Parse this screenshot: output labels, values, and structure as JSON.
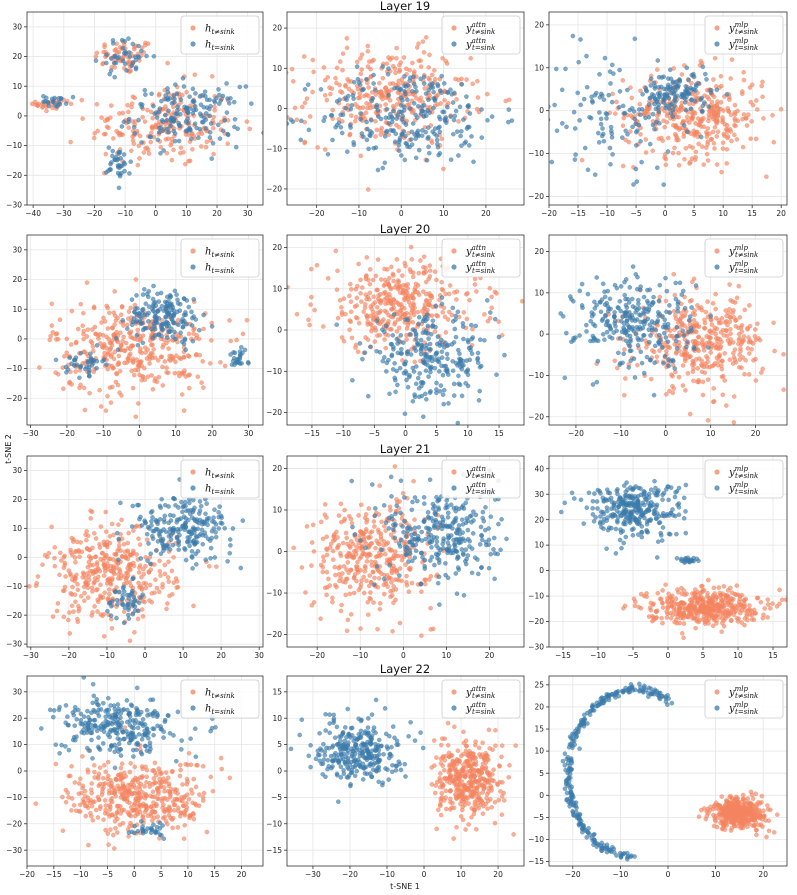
{
  "figure": {
    "xlabel": "t-SNE 1",
    "ylabel": "t-SNE 2",
    "colors": {
      "not_sink": "#f4845f",
      "sink": "#3b7bab"
    }
  },
  "rows": [
    {
      "title": "Layer 19"
    },
    {
      "title": "Layer 20"
    },
    {
      "title": "Layer 21"
    },
    {
      "title": "Layer 22"
    }
  ],
  "legend_kinds": {
    "h": {
      "base": "h",
      "sup": "",
      "sub_not": "t≠sink",
      "sub_sink": "t=sink"
    },
    "attn": {
      "base": "y",
      "sup": "attn",
      "sub_not": "t≠sink",
      "sub_sink": "t=sink"
    },
    "mlp": {
      "base": "y",
      "sup": "mlp",
      "sub_not": "t≠sink",
      "sub_sink": "t=sink"
    }
  },
  "chart_data": [
    {
      "type": "scatter",
      "layer": "Layer 19",
      "kind": "h",
      "legend_pos": "top-right",
      "xlim": [
        -42,
        35
      ],
      "ylim": [
        -30,
        35
      ],
      "xticks": [
        -40,
        -30,
        -20,
        -10,
        0,
        10,
        20,
        30
      ],
      "yticks": [
        -30,
        -20,
        -10,
        0,
        10,
        20,
        30
      ],
      "clusters": [
        {
          "series": "not_sink",
          "n": 60,
          "cx": -10,
          "cy": 20,
          "rx": 10,
          "ry": 6,
          "shape": "gauss"
        },
        {
          "series": "not_sink",
          "n": 210,
          "cx": 2,
          "cy": -3,
          "rx": 24,
          "ry": 14,
          "shape": "gauss"
        },
        {
          "series": "not_sink",
          "n": 25,
          "cx": -34,
          "cy": 4,
          "rx": 5,
          "ry": 3,
          "shape": "gauss"
        },
        {
          "series": "sink",
          "n": 40,
          "cx": -10,
          "cy": 20,
          "rx": 9,
          "ry": 6,
          "shape": "gauss"
        },
        {
          "series": "sink",
          "n": 160,
          "cx": 10,
          "cy": 0,
          "rx": 18,
          "ry": 10,
          "shape": "gauss"
        },
        {
          "series": "sink",
          "n": 35,
          "cx": -12,
          "cy": -16,
          "rx": 4,
          "ry": 6,
          "shape": "gauss"
        },
        {
          "series": "sink",
          "n": 20,
          "cx": -33,
          "cy": 5,
          "rx": 4,
          "ry": 2,
          "shape": "gauss"
        }
      ]
    },
    {
      "type": "scatter",
      "layer": "Layer 19",
      "kind": "attn",
      "legend_pos": "top-right",
      "xlim": [
        -27,
        29
      ],
      "ylim": [
        -24,
        24
      ],
      "xticks": [
        -20,
        -10,
        0,
        10,
        20
      ],
      "yticks": [
        -20,
        -10,
        0,
        10,
        20
      ],
      "clusters": [
        {
          "series": "not_sink",
          "n": 330,
          "cx": -3,
          "cy": 3,
          "rx": 19,
          "ry": 12,
          "shape": "gauss"
        },
        {
          "series": "sink",
          "n": 260,
          "cx": 2,
          "cy": -2,
          "rx": 21,
          "ry": 12,
          "shape": "gauss"
        }
      ]
    },
    {
      "type": "scatter",
      "layer": "Layer 19",
      "kind": "mlp",
      "legend_pos": "top-right",
      "xlim": [
        -20,
        21
      ],
      "ylim": [
        -22,
        23
      ],
      "xticks": [
        -20,
        -15,
        -10,
        -5,
        0,
        5,
        10,
        15,
        20
      ],
      "yticks": [
        -20,
        -10,
        0,
        10,
        20
      ],
      "clusters": [
        {
          "series": "not_sink",
          "n": 360,
          "cx": 5,
          "cy": -1,
          "rx": 12,
          "ry": 10,
          "shape": "gauss"
        },
        {
          "series": "sink",
          "n": 120,
          "cx": 2,
          "cy": 4,
          "rx": 6,
          "ry": 5,
          "shape": "gauss"
        },
        {
          "series": "sink",
          "n": 120,
          "cx": -9,
          "cy": 0,
          "rx": 12,
          "ry": 14,
          "shape": "gauss"
        }
      ]
    },
    {
      "type": "scatter",
      "layer": "Layer 20",
      "kind": "h",
      "legend_pos": "top-right",
      "xlim": [
        -31,
        34
      ],
      "ylim": [
        -29,
        35
      ],
      "xticks": [
        -30,
        -20,
        -10,
        0,
        10,
        20,
        30
      ],
      "yticks": [
        -20,
        -10,
        0,
        10,
        20,
        30
      ],
      "clusters": [
        {
          "series": "not_sink",
          "n": 380,
          "cx": -2,
          "cy": -3,
          "rx": 22,
          "ry": 16,
          "shape": "gauss"
        },
        {
          "series": "sink",
          "n": 170,
          "cx": 7,
          "cy": 8,
          "rx": 10,
          "ry": 9,
          "shape": "gauss"
        },
        {
          "series": "sink",
          "n": 40,
          "cx": -15,
          "cy": -8,
          "rx": 5,
          "ry": 4,
          "shape": "gauss"
        },
        {
          "series": "sink",
          "n": 25,
          "cx": 27,
          "cy": -7,
          "rx": 3,
          "ry": 3,
          "shape": "gauss"
        }
      ]
    },
    {
      "type": "scatter",
      "layer": "Layer 20",
      "kind": "attn",
      "legend_pos": "top-right",
      "xlim": [
        -19,
        19
      ],
      "ylim": [
        -23,
        23
      ],
      "xticks": [
        -15,
        -10,
        -5,
        0,
        5,
        10,
        15
      ],
      "yticks": [
        -20,
        -10,
        0,
        10,
        20
      ],
      "clusters": [
        {
          "series": "not_sink",
          "n": 380,
          "cx": -1,
          "cy": 6,
          "rx": 13,
          "ry": 11,
          "shape": "gauss"
        },
        {
          "series": "sink",
          "n": 260,
          "cx": 4,
          "cy": -7,
          "rx": 10,
          "ry": 10,
          "shape": "gauss"
        }
      ]
    },
    {
      "type": "scatter",
      "layer": "Layer 20",
      "kind": "mlp",
      "legend_pos": "top-right",
      "xlim": [
        -26,
        27
      ],
      "ylim": [
        -22,
        24
      ],
      "xticks": [
        -20,
        -10,
        0,
        10,
        20
      ],
      "yticks": [
        -20,
        -10,
        0,
        10,
        20
      ],
      "clusters": [
        {
          "series": "not_sink",
          "n": 380,
          "cx": 8,
          "cy": -2,
          "rx": 14,
          "ry": 11,
          "shape": "gauss"
        },
        {
          "series": "sink",
          "n": 280,
          "cx": -7,
          "cy": 3,
          "rx": 13,
          "ry": 11,
          "shape": "gauss"
        }
      ]
    },
    {
      "type": "scatter",
      "layer": "Layer 21",
      "kind": "h",
      "legend_pos": "top-right",
      "xlim": [
        -31,
        31
      ],
      "ylim": [
        -31,
        35
      ],
      "xticks": [
        -30,
        -20,
        -10,
        0,
        10,
        20,
        30
      ],
      "yticks": [
        -30,
        -20,
        -10,
        0,
        10,
        20,
        30
      ],
      "clusters": [
        {
          "series": "not_sink",
          "n": 380,
          "cx": -9,
          "cy": -6,
          "rx": 17,
          "ry": 16,
          "shape": "gauss"
        },
        {
          "series": "sink",
          "n": 230,
          "cx": 10,
          "cy": 10,
          "rx": 13,
          "ry": 11,
          "shape": "gauss"
        },
        {
          "series": "sink",
          "n": 50,
          "cx": -5,
          "cy": -15,
          "rx": 5,
          "ry": 6,
          "shape": "gauss"
        }
      ]
    },
    {
      "type": "scatter",
      "layer": "Layer 21",
      "kind": "attn",
      "legend_pos": "top-right",
      "xlim": [
        -27,
        28
      ],
      "ylim": [
        -23,
        23
      ],
      "xticks": [
        -20,
        -10,
        0,
        10,
        20
      ],
      "yticks": [
        -20,
        -10,
        0,
        10,
        20
      ],
      "clusters": [
        {
          "series": "not_sink",
          "n": 380,
          "cx": -7,
          "cy": -1,
          "rx": 14,
          "ry": 13,
          "shape": "gauss"
        },
        {
          "series": "sink",
          "n": 300,
          "cx": 9,
          "cy": 4,
          "rx": 13,
          "ry": 12,
          "shape": "gauss"
        }
      ]
    },
    {
      "type": "scatter",
      "layer": "Layer 21",
      "kind": "mlp",
      "legend_pos": "top-right",
      "xlim": [
        -17,
        17
      ],
      "ylim": [
        -30,
        45
      ],
      "xticks": [
        -15,
        -10,
        -5,
        0,
        5,
        10,
        15
      ],
      "yticks": [
        -30,
        -20,
        -10,
        0,
        10,
        20,
        30,
        40
      ],
      "clusters": [
        {
          "series": "not_sink",
          "n": 420,
          "cx": 5,
          "cy": -14,
          "rx": 8,
          "ry": 7,
          "shape": "gauss"
        },
        {
          "series": "sink",
          "n": 300,
          "cx": -5,
          "cy": 24,
          "rx": 7,
          "ry": 11,
          "shape": "gauss"
        },
        {
          "series": "sink",
          "n": 20,
          "cx": 3,
          "cy": 4,
          "rx": 2,
          "ry": 1,
          "shape": "gauss"
        }
      ]
    },
    {
      "type": "scatter",
      "layer": "Layer 22",
      "kind": "h",
      "legend_pos": "top-right",
      "xlim": [
        -20,
        24
      ],
      "ylim": [
        -36,
        36
      ],
      "xticks": [
        -20,
        -15,
        -10,
        -5,
        0,
        5,
        10,
        15,
        20
      ],
      "yticks": [
        -30,
        -20,
        -10,
        0,
        10,
        20,
        30
      ],
      "clusters": [
        {
          "series": "not_sink",
          "n": 430,
          "cx": 1,
          "cy": -10,
          "rx": 13,
          "ry": 14,
          "shape": "gauss"
        },
        {
          "series": "sink",
          "n": 280,
          "cx": -3,
          "cy": 17,
          "rx": 11,
          "ry": 11,
          "shape": "gauss"
        },
        {
          "series": "sink",
          "n": 30,
          "cx": 3,
          "cy": -22,
          "rx": 3,
          "ry": 3,
          "shape": "gauss"
        }
      ]
    },
    {
      "type": "scatter",
      "layer": "Layer 22",
      "kind": "attn",
      "legend_pos": "top-right",
      "xlim": [
        -37,
        27
      ],
      "ylim": [
        -18,
        18
      ],
      "xticks": [
        -30,
        -20,
        -10,
        0,
        10,
        20
      ],
      "yticks": [
        -15,
        -10,
        -5,
        0,
        5,
        10,
        15
      ],
      "clusters": [
        {
          "series": "not_sink",
          "n": 380,
          "cx": 12,
          "cy": -2,
          "rx": 9,
          "ry": 7,
          "shape": "gauss"
        },
        {
          "series": "sink",
          "n": 300,
          "cx": -18,
          "cy": 4,
          "rx": 11,
          "ry": 6,
          "shape": "gauss"
        }
      ]
    },
    {
      "type": "scatter",
      "layer": "Layer 22",
      "kind": "mlp",
      "legend_pos": "top-right",
      "xlim": [
        -25,
        25
      ],
      "ylim": [
        -16,
        27
      ],
      "xticks": [
        -20,
        -10,
        0,
        10,
        20
      ],
      "yticks": [
        -15,
        -10,
        -5,
        0,
        5,
        10,
        15,
        20,
        25
      ],
      "clusters": [
        {
          "series": "not_sink",
          "n": 380,
          "cx": 15,
          "cy": -4,
          "rx": 6,
          "ry": 3.5,
          "shape": "gauss"
        },
        {
          "series": "sink",
          "n": 280,
          "cx": -7,
          "cy": 5,
          "rx": 14,
          "ry": 19,
          "shape": "arc",
          "a0": 1.05,
          "a1": 4.7
        }
      ]
    }
  ]
}
